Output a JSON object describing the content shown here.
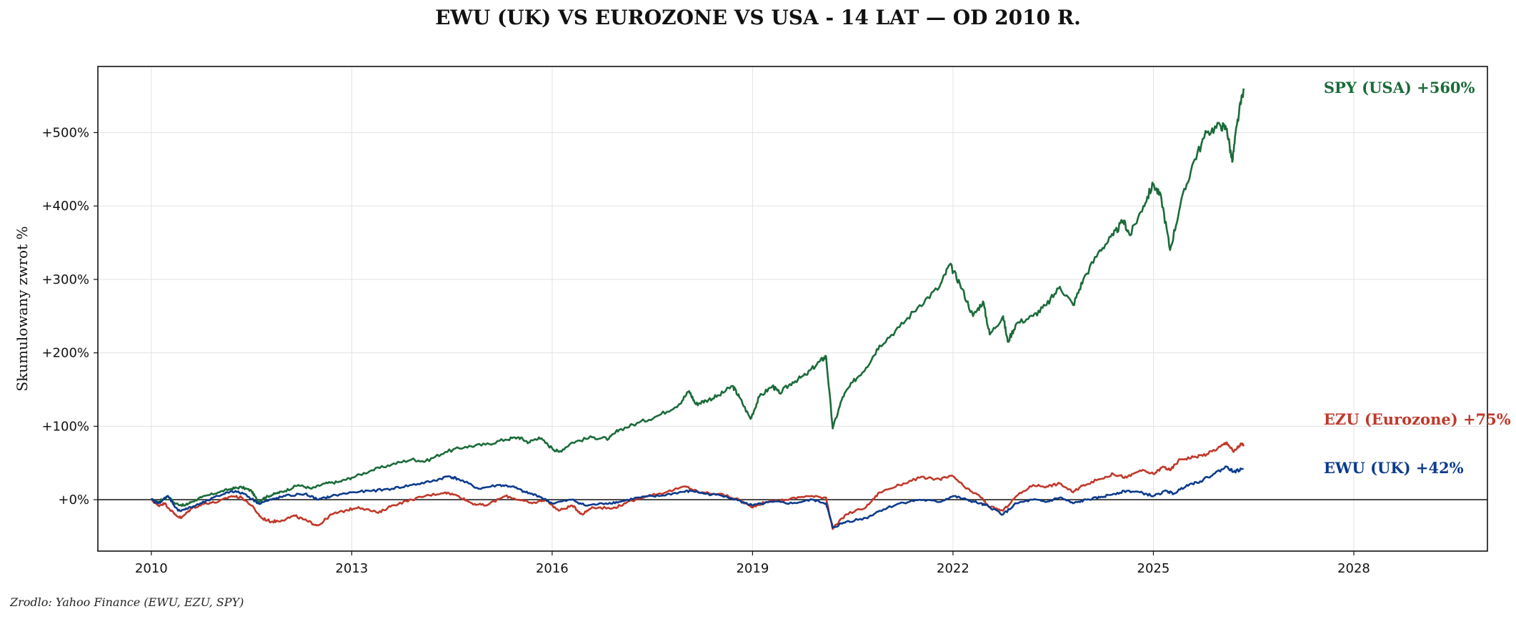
{
  "chart_data": {
    "type": "line",
    "title": "EWU (UK) VS EUROZONE VS USA - 14 LAT — OD 2010 R.",
    "xlabel": "",
    "ylabel": "Skumulowany zwrot %",
    "source": "Zrodlo: Yahoo Finance (EWU, EZU, SPY)",
    "xlim": [
      2009.2,
      2030.0
    ],
    "ylim": [
      -70,
      590
    ],
    "x_ticks": [
      2010,
      2013,
      2016,
      2019,
      2022,
      2025,
      2028
    ],
    "x_tick_labels": [
      "2010",
      "2013",
      "2016",
      "2019",
      "2022",
      "2025",
      "2028"
    ],
    "y_ticks": [
      0,
      100,
      200,
      300,
      400,
      500
    ],
    "y_tick_labels": [
      "+0%",
      "+100%",
      "+200%",
      "+300%",
      "+400%",
      "+500%"
    ],
    "grid": true,
    "zero_line": true,
    "series": [
      {
        "name": "SPY (USA)",
        "end_label": "SPY (USA)  +560%",
        "color": "#1b6b3a",
        "points": [
          [
            2010.0,
            0
          ],
          [
            2010.1,
            -3
          ],
          [
            2010.25,
            5
          ],
          [
            2010.35,
            -5
          ],
          [
            2010.5,
            -8
          ],
          [
            2010.6,
            -3
          ],
          [
            2010.75,
            3
          ],
          [
            2011.0,
            10
          ],
          [
            2011.2,
            15
          ],
          [
            2011.35,
            17
          ],
          [
            2011.5,
            12
          ],
          [
            2011.6,
            -3
          ],
          [
            2011.7,
            3
          ],
          [
            2011.85,
            8
          ],
          [
            2012.0,
            12
          ],
          [
            2012.2,
            20
          ],
          [
            2012.4,
            15
          ],
          [
            2012.6,
            22
          ],
          [
            2012.8,
            24
          ],
          [
            2013.0,
            30
          ],
          [
            2013.3,
            40
          ],
          [
            2013.6,
            48
          ],
          [
            2013.9,
            55
          ],
          [
            2014.1,
            52
          ],
          [
            2014.4,
            65
          ],
          [
            2014.7,
            72
          ],
          [
            2015.0,
            75
          ],
          [
            2015.3,
            82
          ],
          [
            2015.5,
            85
          ],
          [
            2015.65,
            78
          ],
          [
            2015.8,
            85
          ],
          [
            2016.0,
            70
          ],
          [
            2016.1,
            65
          ],
          [
            2016.3,
            78
          ],
          [
            2016.6,
            85
          ],
          [
            2016.85,
            83
          ],
          [
            2017.0,
            95
          ],
          [
            2017.3,
            105
          ],
          [
            2017.6,
            115
          ],
          [
            2017.9,
            130
          ],
          [
            2018.05,
            148
          ],
          [
            2018.15,
            130
          ],
          [
            2018.3,
            135
          ],
          [
            2018.5,
            142
          ],
          [
            2018.7,
            155
          ],
          [
            2018.8,
            140
          ],
          [
            2018.97,
            110
          ],
          [
            2019.1,
            140
          ],
          [
            2019.3,
            155
          ],
          [
            2019.4,
            145
          ],
          [
            2019.6,
            160
          ],
          [
            2019.8,
            170
          ],
          [
            2020.0,
            188
          ],
          [
            2020.1,
            195
          ],
          [
            2020.2,
            97
          ],
          [
            2020.35,
            140
          ],
          [
            2020.5,
            160
          ],
          [
            2020.7,
            180
          ],
          [
            2020.9,
            210
          ],
          [
            2021.2,
            235
          ],
          [
            2021.5,
            265
          ],
          [
            2021.8,
            290
          ],
          [
            2021.95,
            320
          ],
          [
            2022.1,
            295
          ],
          [
            2022.3,
            250
          ],
          [
            2022.45,
            270
          ],
          [
            2022.55,
            225
          ],
          [
            2022.75,
            250
          ],
          [
            2022.82,
            215
          ],
          [
            2022.95,
            240
          ],
          [
            2023.2,
            250
          ],
          [
            2023.4,
            265
          ],
          [
            2023.6,
            290
          ],
          [
            2023.8,
            265
          ],
          [
            2023.95,
            300
          ],
          [
            2024.2,
            340
          ],
          [
            2024.4,
            360
          ],
          [
            2024.55,
            380
          ],
          [
            2024.65,
            360
          ],
          [
            2024.85,
            400
          ],
          [
            2025.0,
            430
          ],
          [
            2025.12,
            410
          ],
          [
            2025.25,
            340
          ],
          [
            2025.4,
            400
          ],
          [
            2025.6,
            460
          ],
          [
            2025.8,
            500
          ],
          [
            2026.0,
            510
          ],
          [
            2026.1,
            505
          ],
          [
            2026.18,
            460
          ],
          [
            2026.25,
            510
          ],
          [
            2026.35,
            560
          ]
        ]
      },
      {
        "name": "EZU (Eurozone)",
        "end_label": "EZU (Eurozone)  +75%",
        "color": "#c0392b",
        "points": [
          [
            2010.0,
            0
          ],
          [
            2010.1,
            -8
          ],
          [
            2010.2,
            -5
          ],
          [
            2010.35,
            -20
          ],
          [
            2010.45,
            -25
          ],
          [
            2010.6,
            -12
          ],
          [
            2010.8,
            -5
          ],
          [
            2011.0,
            -3
          ],
          [
            2011.2,
            5
          ],
          [
            2011.35,
            3
          ],
          [
            2011.5,
            -8
          ],
          [
            2011.65,
            -25
          ],
          [
            2011.8,
            -30
          ],
          [
            2011.95,
            -28
          ],
          [
            2012.15,
            -22
          ],
          [
            2012.35,
            -30
          ],
          [
            2012.5,
            -35
          ],
          [
            2012.7,
            -20
          ],
          [
            2012.9,
            -15
          ],
          [
            2013.1,
            -10
          ],
          [
            2013.4,
            -18
          ],
          [
            2013.6,
            -8
          ],
          [
            2013.9,
            0
          ],
          [
            2014.1,
            5
          ],
          [
            2014.4,
            10
          ],
          [
            2014.6,
            5
          ],
          [
            2014.8,
            -5
          ],
          [
            2015.0,
            -8
          ],
          [
            2015.3,
            5
          ],
          [
            2015.5,
            0
          ],
          [
            2015.7,
            -5
          ],
          [
            2015.9,
            0
          ],
          [
            2016.1,
            -15
          ],
          [
            2016.3,
            -8
          ],
          [
            2016.45,
            -20
          ],
          [
            2016.6,
            -10
          ],
          [
            2016.9,
            -12
          ],
          [
            2017.1,
            -5
          ],
          [
            2017.4,
            5
          ],
          [
            2017.7,
            10
          ],
          [
            2018.0,
            18
          ],
          [
            2018.2,
            10
          ],
          [
            2018.5,
            8
          ],
          [
            2018.8,
            0
          ],
          [
            2018.98,
            -10
          ],
          [
            2019.2,
            -3
          ],
          [
            2019.5,
            0
          ],
          [
            2019.8,
            5
          ],
          [
            2020.1,
            3
          ],
          [
            2020.2,
            -40
          ],
          [
            2020.4,
            -20
          ],
          [
            2020.7,
            -10
          ],
          [
            2020.9,
            10
          ],
          [
            2021.2,
            20
          ],
          [
            2021.5,
            30
          ],
          [
            2021.8,
            28
          ],
          [
            2022.0,
            32
          ],
          [
            2022.2,
            15
          ],
          [
            2022.4,
            5
          ],
          [
            2022.55,
            -10
          ],
          [
            2022.75,
            -15
          ],
          [
            2022.95,
            5
          ],
          [
            2023.2,
            20
          ],
          [
            2023.4,
            18
          ],
          [
            2023.6,
            22
          ],
          [
            2023.8,
            10
          ],
          [
            2023.95,
            20
          ],
          [
            2024.2,
            28
          ],
          [
            2024.4,
            35
          ],
          [
            2024.6,
            30
          ],
          [
            2024.8,
            40
          ],
          [
            2025.0,
            35
          ],
          [
            2025.15,
            45
          ],
          [
            2025.25,
            40
          ],
          [
            2025.4,
            55
          ],
          [
            2025.6,
            58
          ],
          [
            2025.8,
            62
          ],
          [
            2026.0,
            72
          ],
          [
            2026.1,
            78
          ],
          [
            2026.2,
            65
          ],
          [
            2026.3,
            75
          ],
          [
            2026.35,
            75
          ]
        ]
      },
      {
        "name": "EWU (UK)",
        "end_label": "EWU (UK)  +42%",
        "color": "#0d3b8c",
        "points": [
          [
            2010.0,
            0
          ],
          [
            2010.1,
            -5
          ],
          [
            2010.25,
            5
          ],
          [
            2010.4,
            -15
          ],
          [
            2010.55,
            -12
          ],
          [
            2010.75,
            -5
          ],
          [
            2011.0,
            5
          ],
          [
            2011.2,
            12
          ],
          [
            2011.4,
            8
          ],
          [
            2011.6,
            -5
          ],
          [
            2011.8,
            0
          ],
          [
            2012.0,
            5
          ],
          [
            2012.3,
            8
          ],
          [
            2012.5,
            0
          ],
          [
            2012.7,
            5
          ],
          [
            2013.0,
            10
          ],
          [
            2013.3,
            12
          ],
          [
            2013.6,
            15
          ],
          [
            2013.9,
            20
          ],
          [
            2014.2,
            25
          ],
          [
            2014.45,
            32
          ],
          [
            2014.6,
            28
          ],
          [
            2014.9,
            15
          ],
          [
            2015.2,
            20
          ],
          [
            2015.4,
            18
          ],
          [
            2015.6,
            10
          ],
          [
            2015.8,
            5
          ],
          [
            2016.0,
            -5
          ],
          [
            2016.3,
            0
          ],
          [
            2016.5,
            -8
          ],
          [
            2016.8,
            -5
          ],
          [
            2017.0,
            -3
          ],
          [
            2017.3,
            3
          ],
          [
            2017.6,
            5
          ],
          [
            2017.9,
            10
          ],
          [
            2018.1,
            12
          ],
          [
            2018.3,
            8
          ],
          [
            2018.6,
            5
          ],
          [
            2018.9,
            -5
          ],
          [
            2019.0,
            -8
          ],
          [
            2019.3,
            -3
          ],
          [
            2019.6,
            -5
          ],
          [
            2019.9,
            0
          ],
          [
            2020.1,
            -5
          ],
          [
            2020.2,
            -38
          ],
          [
            2020.4,
            -30
          ],
          [
            2020.7,
            -25
          ],
          [
            2020.9,
            -15
          ],
          [
            2021.2,
            -5
          ],
          [
            2021.5,
            0
          ],
          [
            2021.8,
            -3
          ],
          [
            2022.0,
            5
          ],
          [
            2022.2,
            0
          ],
          [
            2022.4,
            -5
          ],
          [
            2022.55,
            -10
          ],
          [
            2022.75,
            -20
          ],
          [
            2022.95,
            -5
          ],
          [
            2023.2,
            0
          ],
          [
            2023.4,
            -3
          ],
          [
            2023.6,
            3
          ],
          [
            2023.8,
            -5
          ],
          [
            2024.0,
            0
          ],
          [
            2024.2,
            3
          ],
          [
            2024.4,
            8
          ],
          [
            2024.6,
            12
          ],
          [
            2024.8,
            10
          ],
          [
            2025.0,
            5
          ],
          [
            2025.2,
            12
          ],
          [
            2025.3,
            8
          ],
          [
            2025.5,
            20
          ],
          [
            2025.7,
            25
          ],
          [
            2025.9,
            35
          ],
          [
            2026.1,
            45
          ],
          [
            2026.2,
            38
          ],
          [
            2026.35,
            42
          ]
        ]
      }
    ]
  }
}
